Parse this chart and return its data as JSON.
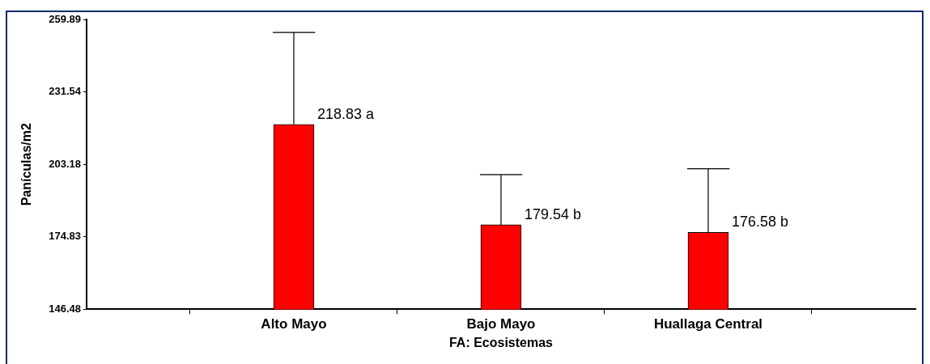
{
  "chart_data": {
    "type": "bar",
    "xlabel": "FA: Ecosistemas",
    "ylabel": "Panículas/m2",
    "categories": [
      "Alto Mayo",
      "Bajo Mayo",
      "Huallaga Central"
    ],
    "values": [
      218.83,
      179.54,
      176.58
    ],
    "color": "#ff0000",
    "errors": [
      [
        218.83,
        254.8
      ],
      [
        179.54,
        199.2
      ],
      [
        176.58,
        201.5
      ]
    ],
    "annotations": [
      {
        "text": "218.83 a",
        "x": "Alto Mayo",
        "y": 218.83
      },
      {
        "text": "179.54 b",
        "x": "Bajo Mayo",
        "y": 179.54
      },
      {
        "text": "176.58 b",
        "x": "Huallaga Central",
        "y": 176.58
      }
    ],
    "ylim": [
      146.48,
      259.89
    ],
    "yticks": [
      146.48,
      174.83,
      203.18,
      231.54,
      259.89
    ],
    "grid": false,
    "legend": false
  }
}
